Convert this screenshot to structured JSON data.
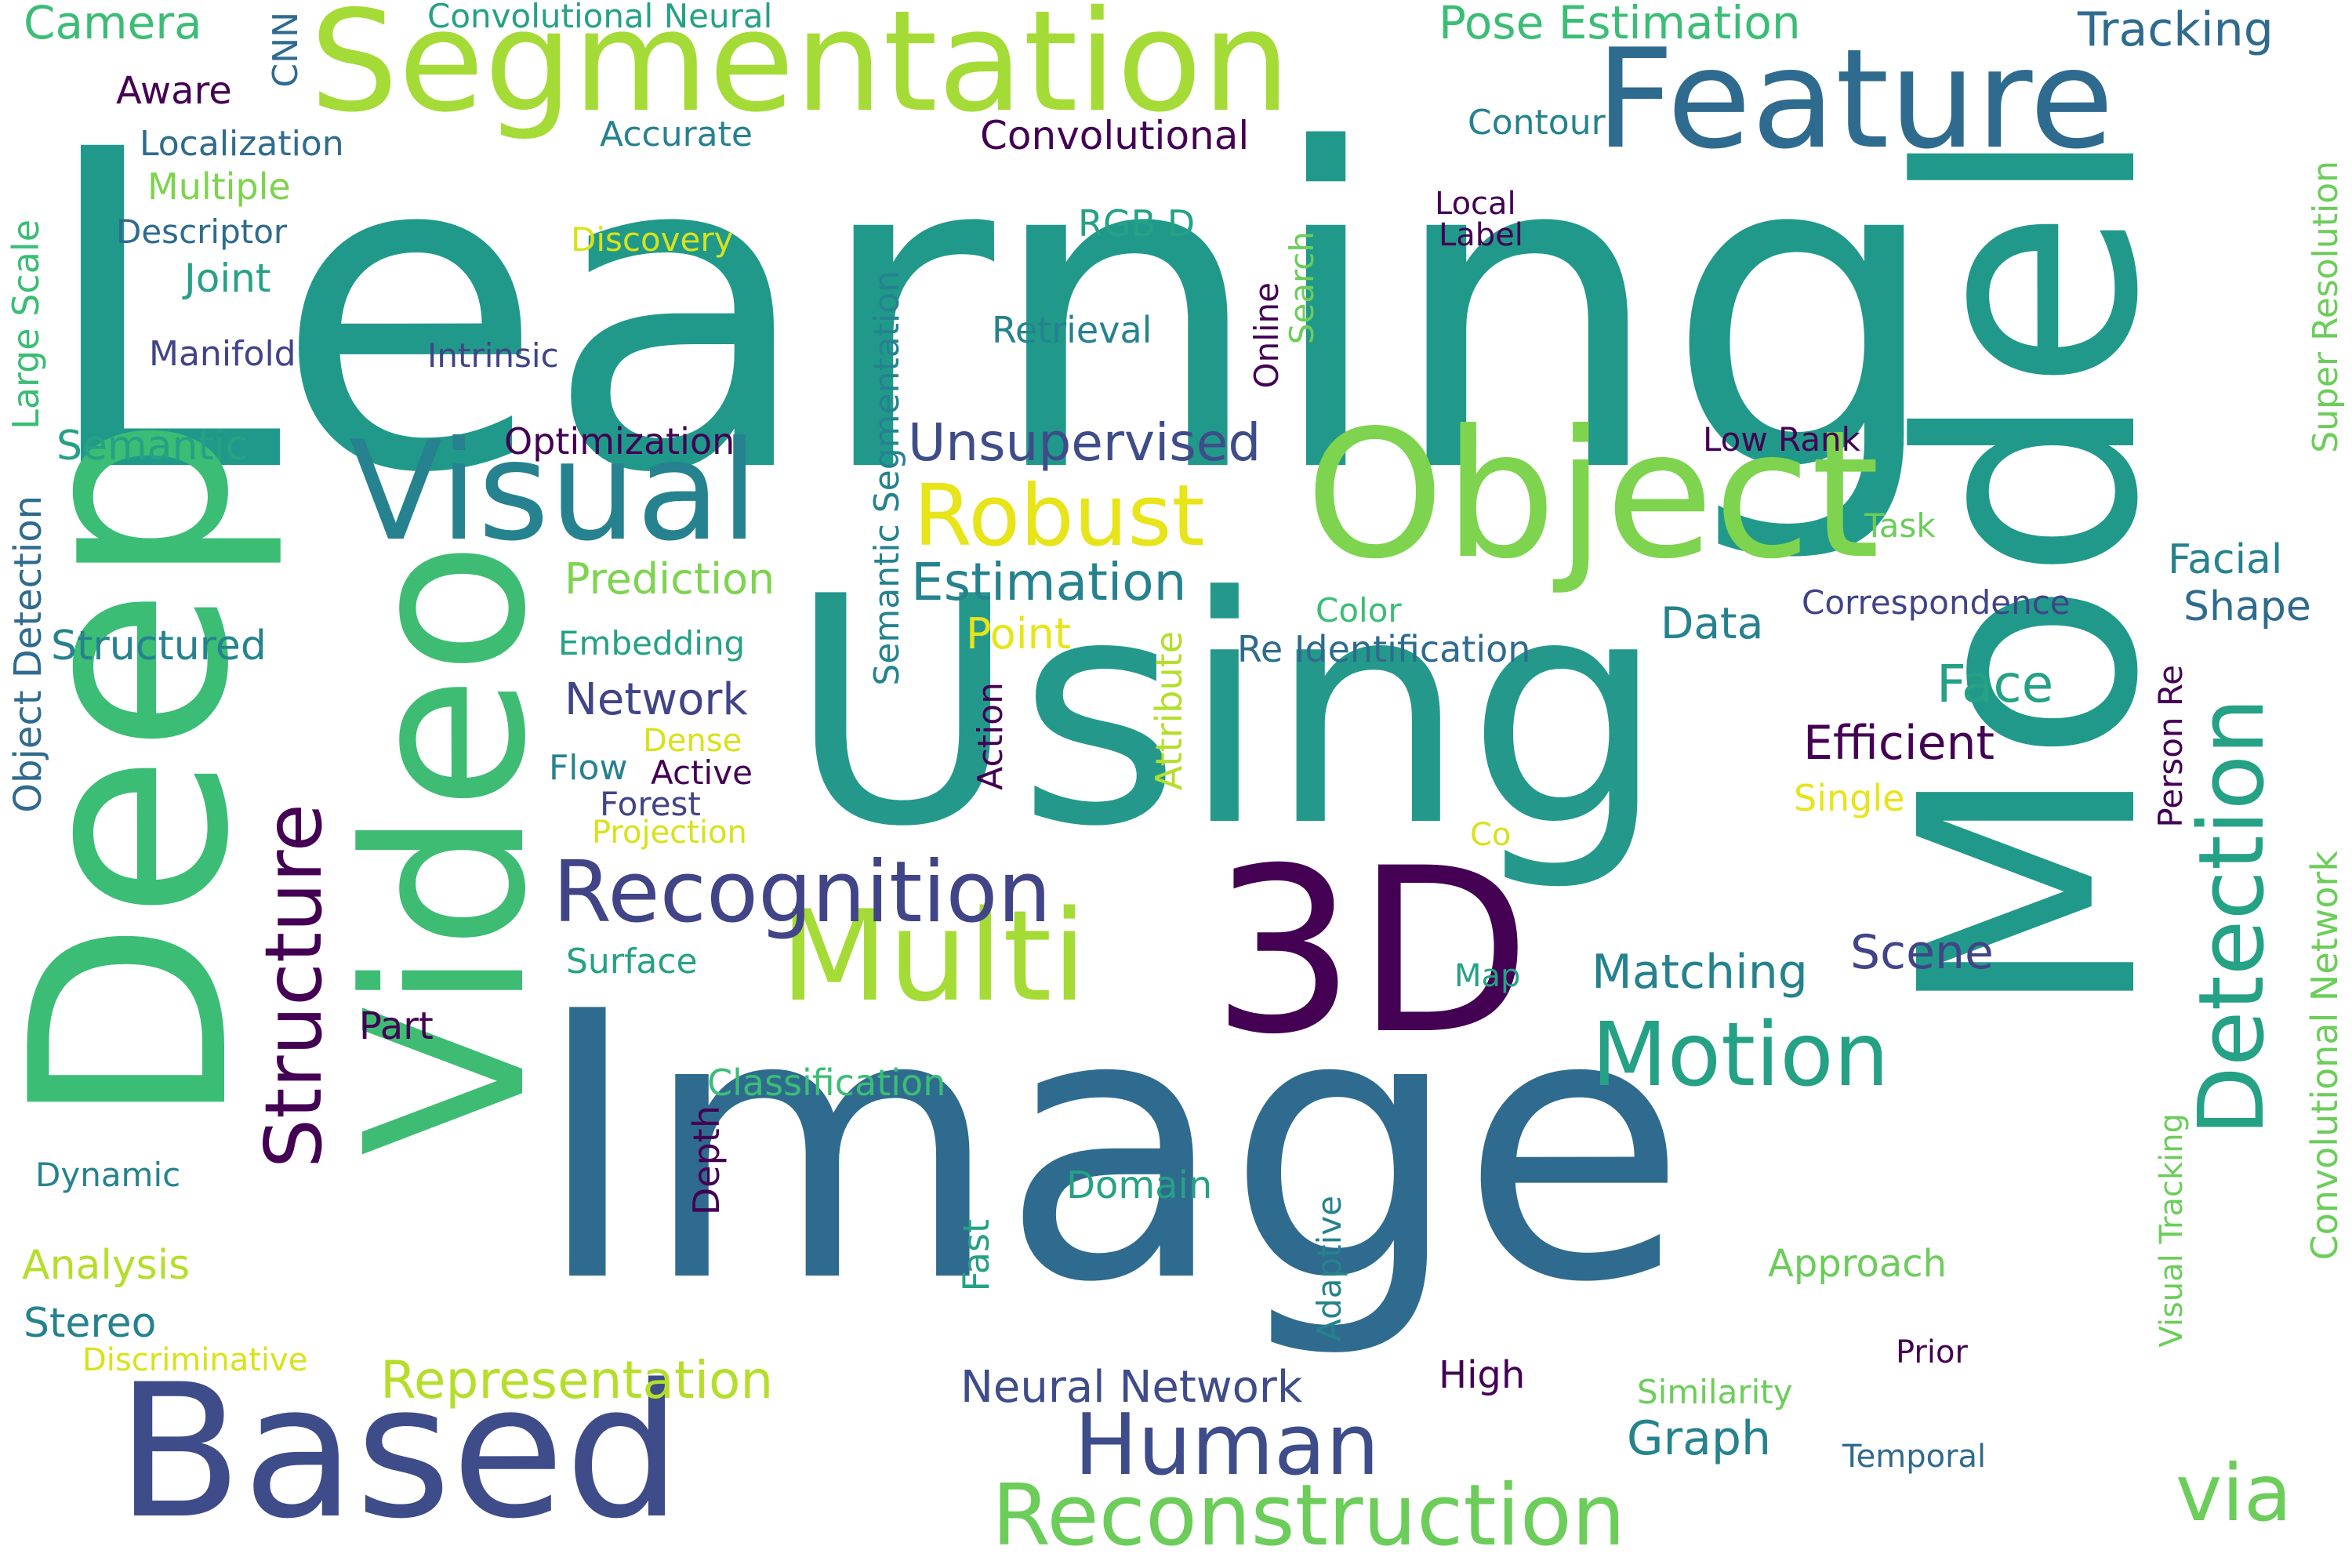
{
  "words": {
    "learning": "Learning",
    "image": "Image",
    "using": "Using",
    "deep": "Deep",
    "model": "Model",
    "video": "Video",
    "three_d": "3D",
    "object": "Object",
    "based": "Based",
    "segmentation": "Segmentation",
    "feature": "Feature",
    "visual": "Visual",
    "multi": "Multi",
    "detection": "Detection",
    "recognition": "Recognition",
    "reconstruction": "Reconstruction",
    "structure": "Structure",
    "motion": "Motion",
    "human": "Human",
    "robust": "Robust",
    "via": "via",
    "unsupervised": "Unsupervised",
    "estimation": "Estimation",
    "representation": "Representation",
    "face": "Face",
    "network": "Network",
    "efficient": "Efficient",
    "neural_network": "Neural Network",
    "matching": "Matching",
    "scene": "Scene",
    "graph": "Graph",
    "data": "Data",
    "pose_estimation": "Pose Estimation",
    "tracking": "Tracking",
    "camera": "Camera",
    "convolutional_neural": "Convolutional Neural",
    "cnn": "CNN",
    "aware": "Aware",
    "localization": "Localization",
    "multiple": "Multiple",
    "descriptor": "Descriptor",
    "joint": "Joint",
    "manifold": "Manifold",
    "accurate": "Accurate",
    "convolutional": "Convolutional",
    "discovery": "Discovery",
    "intrinsic": "Intrinsic",
    "rgb_d": "RGB D",
    "retrieval": "Retrieval",
    "contour": "Contour",
    "local": "Local",
    "label": "Label",
    "search": "Search",
    "online": "Online",
    "super_resolution": "Super Resolution",
    "large_scale": "Large Scale",
    "semantic": "Semantic",
    "optimization": "Optimization",
    "low_rank": "Low Rank",
    "semantic_segmentation": "Semantic Segmentation",
    "task": "Task",
    "prediction": "Prediction",
    "facial": "Facial",
    "correspondence": "Correspondence",
    "shape": "Shape",
    "object_detection": "Object Detection",
    "embedding": "Embedding",
    "color": "Color",
    "point": "Point",
    "structured": "Structured",
    "re_identification": "Re Identification",
    "dense": "Dense",
    "flow": "Flow",
    "active": "Active",
    "forest": "Forest",
    "projection": "Projection",
    "action": "Action",
    "attribute": "Attribute",
    "single": "Single",
    "person_re": "Person Re",
    "co": "Co",
    "convolutional_network": "Convolutional Network",
    "surface": "Surface",
    "map": "Map",
    "part": "Part",
    "classification": "Classification",
    "visual_tracking": "Visual Tracking",
    "dynamic": "Dynamic",
    "depth": "Depth",
    "domain": "Domain",
    "analysis": "Analysis",
    "fast": "Fast",
    "approach": "Approach",
    "adaptive": "Adaptive",
    "stereo": "Stereo",
    "discriminative": "Discriminative",
    "prior": "Prior",
    "high": "High",
    "similarity": "Similarity",
    "temporal": "Temporal"
  }
}
